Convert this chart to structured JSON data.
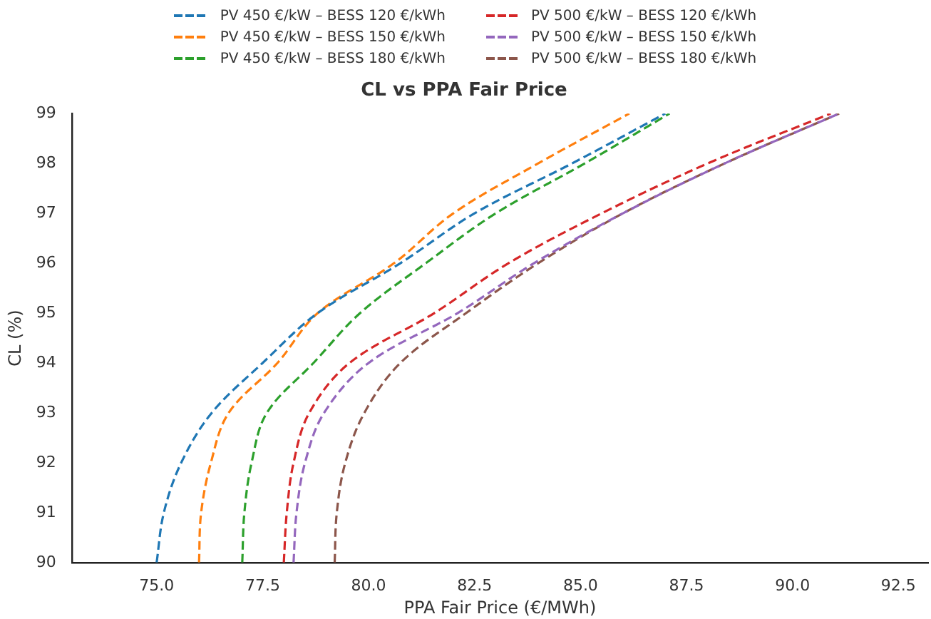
{
  "chart_data": {
    "type": "line",
    "title": "CL vs PPA Fair Price",
    "xlabel": "PPA Fair Price (€/MWh)",
    "ylabel": "CL (%)",
    "xlim": [
      73,
      93.2
    ],
    "ylim": [
      90,
      99
    ],
    "xticks": [
      {
        "value": 75,
        "label": "75.0"
      },
      {
        "value": 77.5,
        "label": "77.5"
      },
      {
        "value": 80,
        "label": "80.0"
      },
      {
        "value": 82.5,
        "label": "82.5"
      },
      {
        "value": 85,
        "label": "85.0"
      },
      {
        "value": 87.5,
        "label": "87.5"
      },
      {
        "value": 90,
        "label": "90.0"
      },
      {
        "value": 92.5,
        "label": "92.5"
      }
    ],
    "yticks": [
      90,
      91,
      92,
      93,
      94,
      95,
      96,
      97,
      98,
      99
    ],
    "grid": false,
    "legend": "top",
    "line_style": "dashed",
    "series": [
      {
        "name": "PV 450 €/kW – BESS 120 €/kWh",
        "color": "#1f77b4",
        "x": [
          75.0,
          75.17,
          75.58,
          76.3,
          77.5,
          78.8,
          80.75,
          82.5,
          84.8,
          87.0
        ],
        "values": [
          90,
          91,
          92,
          93,
          94,
          95,
          96,
          97,
          98,
          99
        ]
      },
      {
        "name": "PV 450 €/kW – BESS 150 €/kWh",
        "color": "#ff7f0e",
        "x": [
          76.0,
          76.05,
          76.28,
          76.7,
          77.85,
          78.8,
          80.6,
          82.0,
          84.0,
          86.15
        ],
        "values": [
          90,
          91,
          92,
          93,
          94,
          95,
          96,
          97,
          98,
          99
        ]
      },
      {
        "name": "PV 450 €/kW – BESS 180 €/kWh",
        "color": "#2ca02c",
        "x": [
          77.02,
          77.07,
          77.24,
          77.6,
          78.7,
          79.8,
          81.35,
          83.0,
          85.1,
          87.1
        ],
        "values": [
          90,
          91,
          92,
          93,
          94,
          95,
          96,
          97,
          98,
          99
        ]
      },
      {
        "name": "PV 500 €/kW – BESS 120 €/kWh",
        "color": "#d62728",
        "x": [
          78.0,
          78.07,
          78.23,
          78.6,
          79.55,
          81.55,
          83.3,
          85.5,
          88.0,
          90.9
        ],
        "values": [
          90,
          91,
          92,
          93,
          94,
          95,
          96,
          97,
          98,
          99
        ]
      },
      {
        "name": "PV 500 €/kW – BESS 150 €/kWh",
        "color": "#9467bd",
        "x": [
          78.23,
          78.3,
          78.5,
          78.95,
          80.0,
          82.1,
          83.9,
          86.0,
          88.4,
          91.1
        ],
        "values": [
          90,
          91,
          92,
          93,
          94,
          95,
          96,
          97,
          98,
          99
        ]
      },
      {
        "name": "PV 500 €/kW – BESS 180 €/kWh",
        "color": "#8c564b",
        "x": [
          79.2,
          79.25,
          79.45,
          79.9,
          80.75,
          82.3,
          84.0,
          86.0,
          88.4,
          91.1
        ],
        "values": [
          90,
          91,
          92,
          93,
          94,
          95,
          96,
          97,
          98,
          99
        ]
      }
    ]
  }
}
